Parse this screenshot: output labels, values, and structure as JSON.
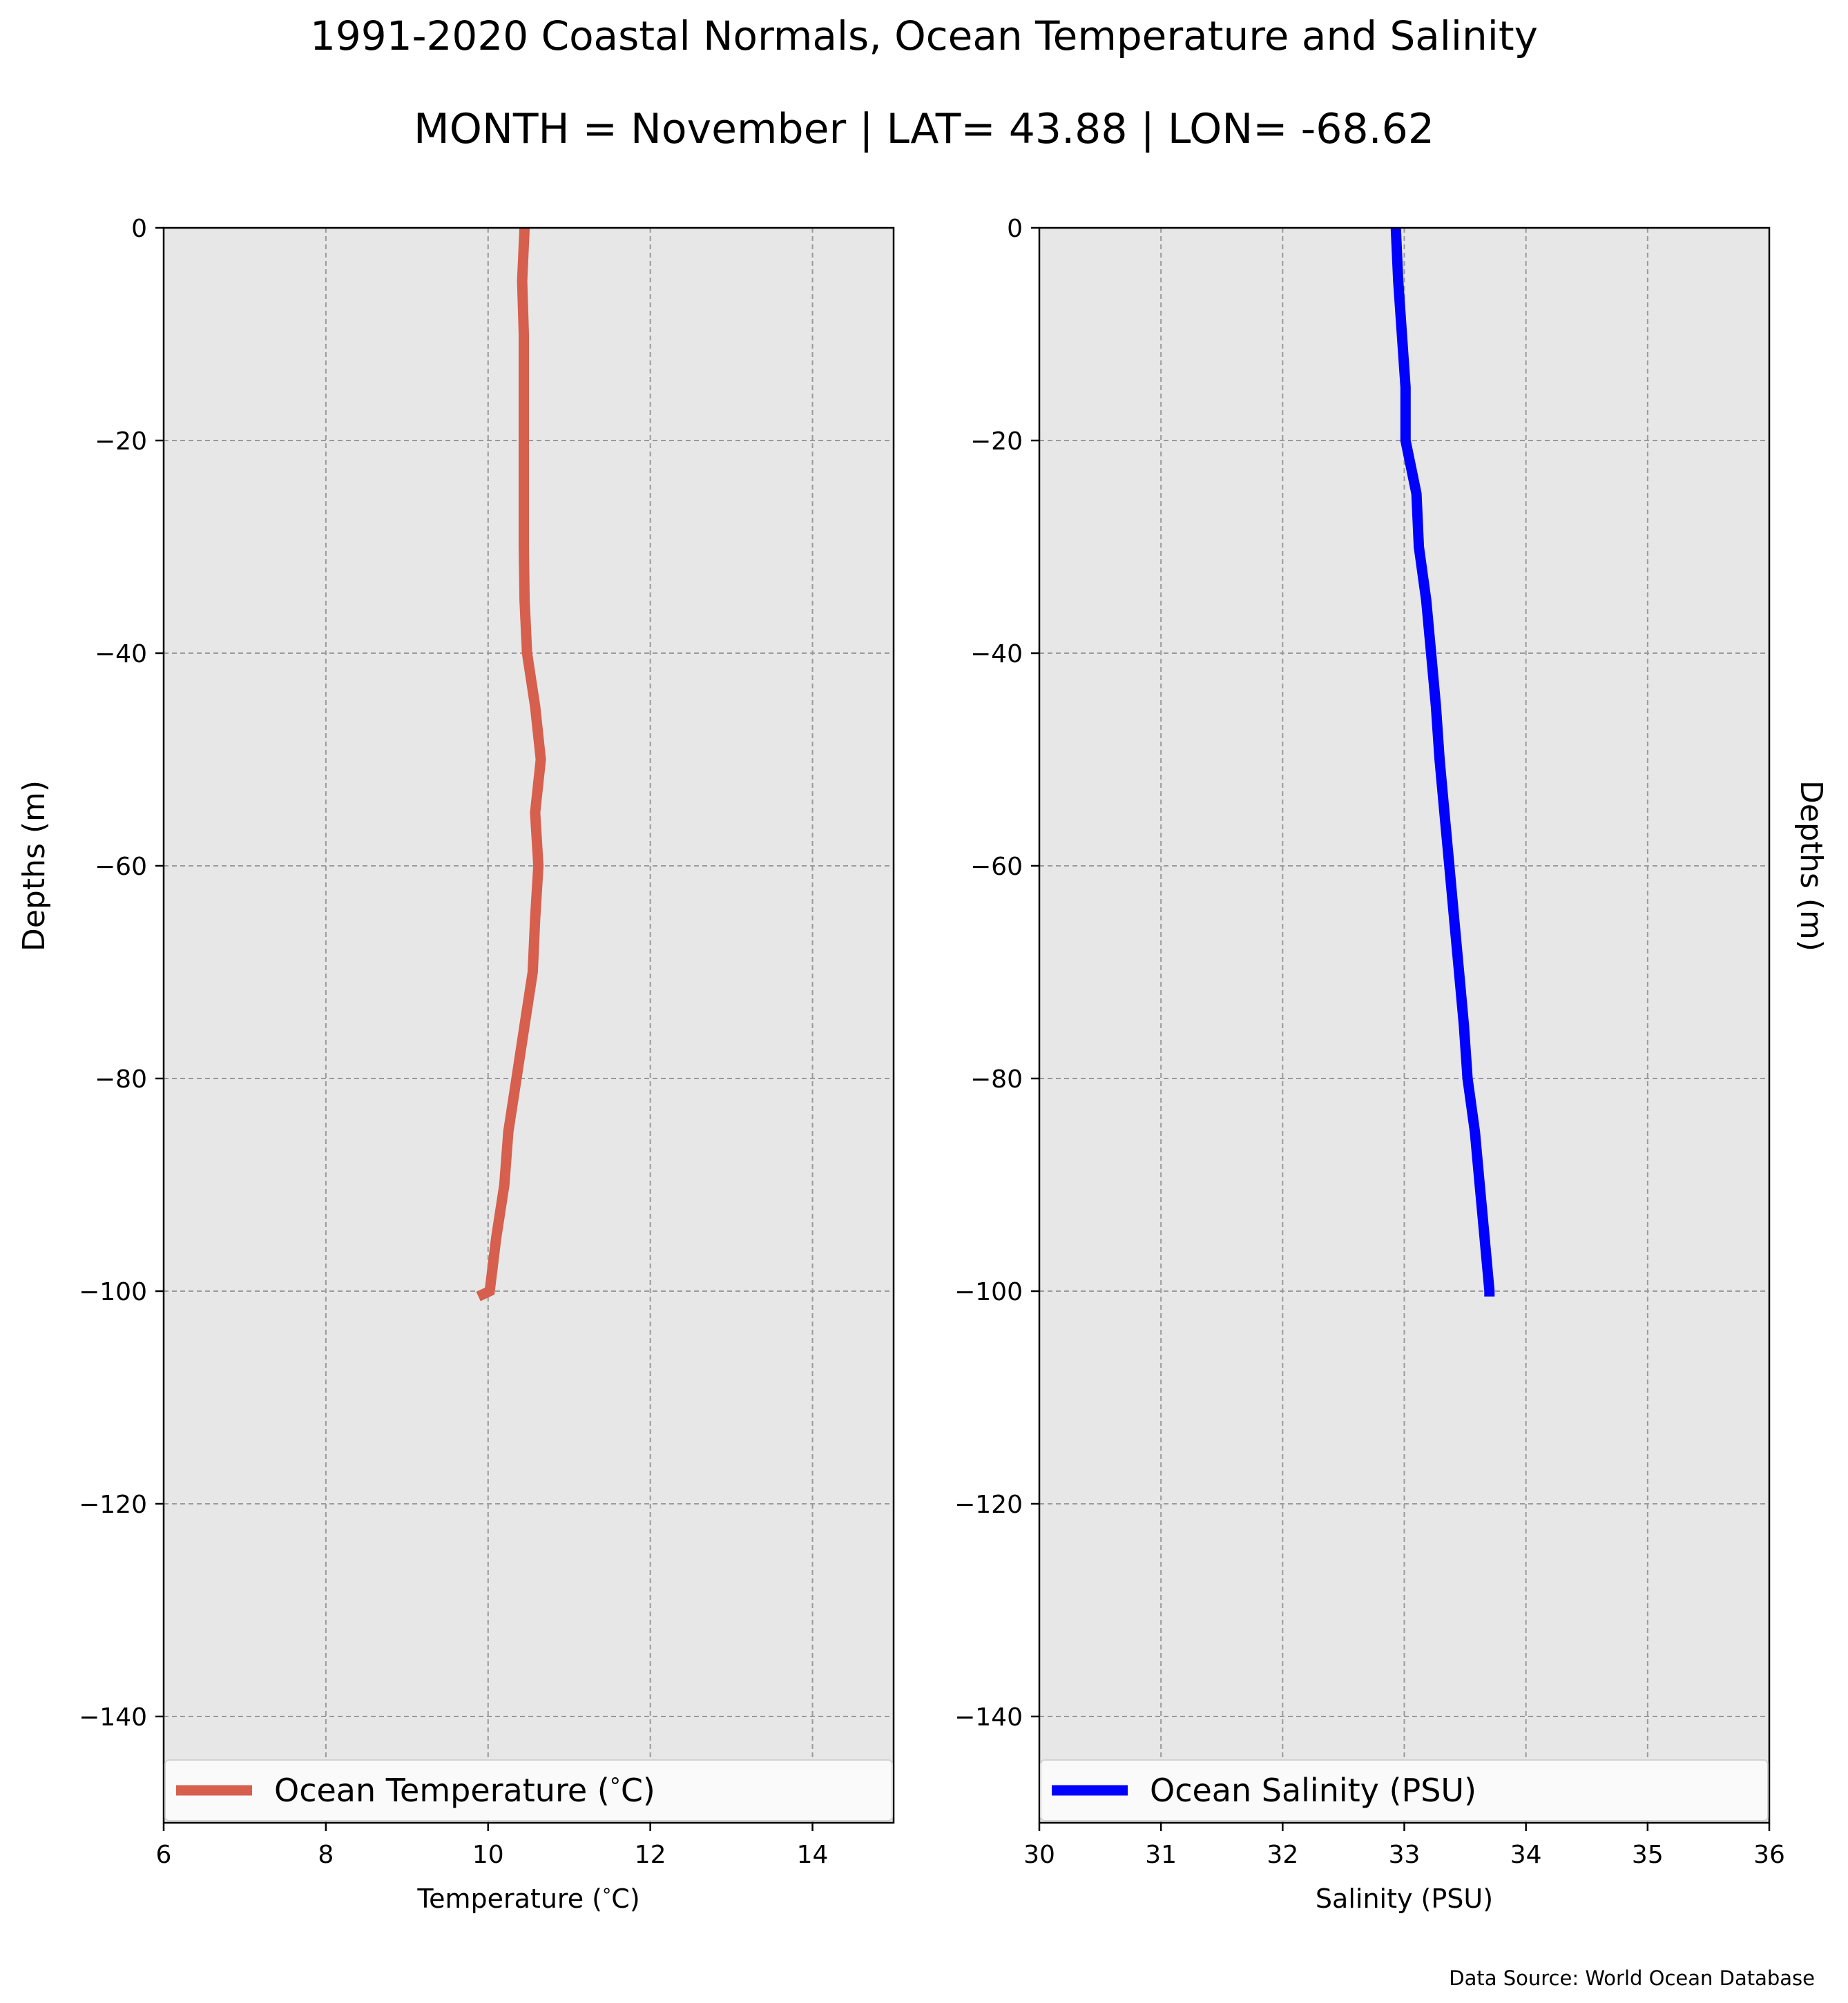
{
  "title": "1991-2020 Coastal Normals, Ocean Temperature and Salinity",
  "subtitle": "MONTH = November | LAT= 43.88 | LON= -68.62",
  "source": "Data Source: World Ocean Database",
  "chart_data": [
    {
      "type": "line",
      "xlabel": "Temperature ($^\\circ$C)",
      "ylabel": "Depths (m)",
      "ylabel_side": "left",
      "xlim": [
        6,
        15
      ],
      "ylim": [
        -150,
        0
      ],
      "xticks": [
        6,
        8,
        10,
        12,
        14
      ],
      "xtick_labels": [
        "6",
        "8",
        "10",
        "12",
        "14"
      ],
      "yticks": [
        0,
        -20,
        -40,
        -60,
        -80,
        -100,
        -120,
        -140
      ],
      "ytick_labels": [
        "0",
        "−20",
        "−40",
        "−60",
        "−80",
        "−100",
        "−120",
        "−140"
      ],
      "grid": true,
      "legend_placement": "lower-center",
      "series": [
        {
          "name": "Ocean Temperature ($^\\circ$C)",
          "color": "#d65f4d",
          "x": [
            10.45,
            10.42,
            10.44,
            10.44,
            10.44,
            10.44,
            10.44,
            10.45,
            10.48,
            10.58,
            10.65,
            10.58,
            10.62,
            10.58,
            10.55,
            10.45,
            10.35,
            10.25,
            10.2,
            10.1,
            10.02,
            9.88
          ],
          "y": [
            0,
            -5,
            -10,
            -15,
            -20,
            -25,
            -30,
            -35,
            -40,
            -45,
            -50,
            -55,
            -60,
            -65,
            -70,
            -75,
            -80,
            -85,
            -90,
            -95,
            -100,
            -100.5
          ]
        }
      ]
    },
    {
      "type": "line",
      "xlabel": "Salinity (PSU)",
      "ylabel": "Depths (m)",
      "ylabel_side": "right",
      "xlim": [
        30,
        36
      ],
      "ylim": [
        -150,
        0
      ],
      "xticks": [
        30,
        31,
        32,
        33,
        34,
        35,
        36
      ],
      "xtick_labels": [
        "30",
        "31",
        "32",
        "33",
        "34",
        "35",
        "36"
      ],
      "yticks": [
        0,
        -20,
        -40,
        -60,
        -80,
        -100,
        -120,
        -140
      ],
      "ytick_labels": [
        "0",
        "−20",
        "−40",
        "−60",
        "−80",
        "−100",
        "−120",
        "−140"
      ],
      "grid": true,
      "legend_placement": "lower-center",
      "series": [
        {
          "name": "Ocean Salinity (PSU)",
          "color": "#0000ff",
          "x": [
            32.93,
            32.95,
            32.98,
            33.01,
            33.01,
            33.1,
            33.12,
            33.18,
            33.22,
            33.26,
            33.29,
            33.33,
            33.37,
            33.41,
            33.45,
            33.49,
            33.52,
            33.58,
            33.62,
            33.66,
            33.7,
            33.7
          ],
          "y": [
            0,
            -5,
            -10,
            -15,
            -20,
            -25,
            -30,
            -35,
            -40,
            -45,
            -50,
            -55,
            -60,
            -65,
            -70,
            -75,
            -80,
            -85,
            -90,
            -95,
            -100,
            -100.5
          ]
        }
      ]
    }
  ]
}
